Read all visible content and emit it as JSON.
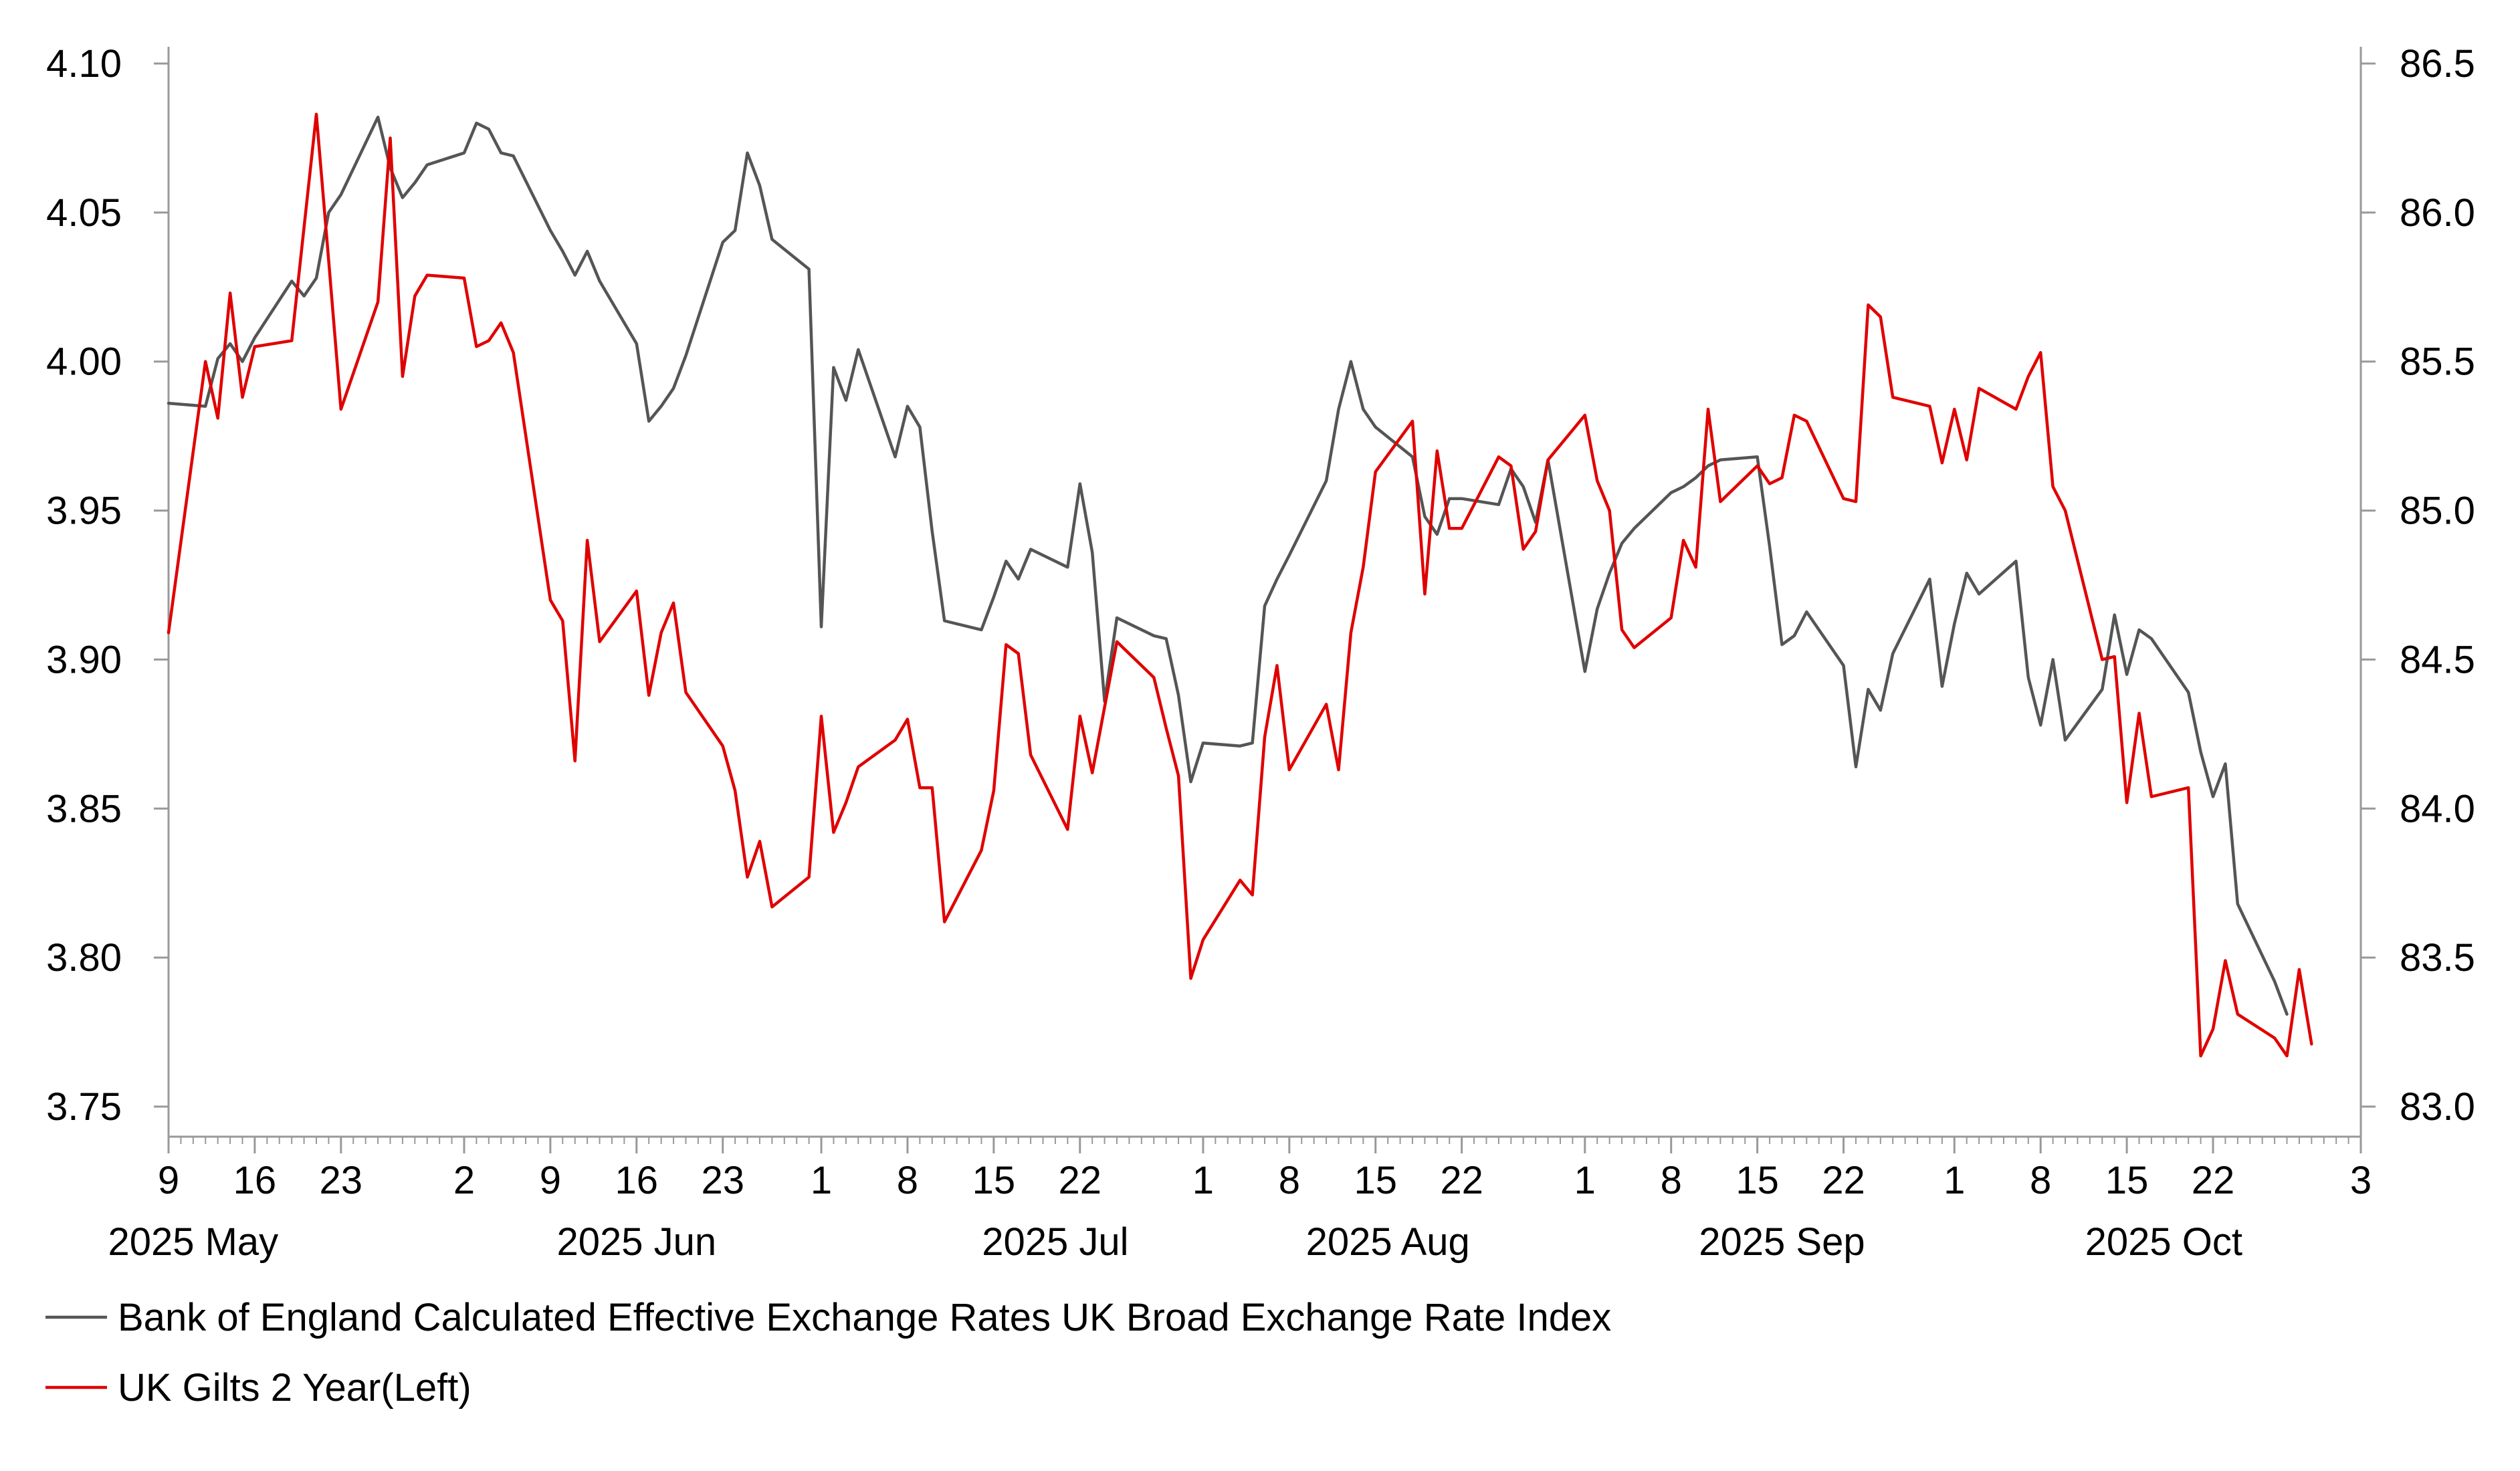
{
  "chart_data": {
    "type": "line",
    "title": "",
    "xlabel": "",
    "ylabel": "",
    "x_tick_days": [
      "9",
      "16",
      "23",
      "2",
      "9",
      "16",
      "23",
      "1",
      "8",
      "15",
      "22",
      "1",
      "8",
      "15",
      "22",
      "1",
      "8",
      "15",
      "22",
      "1",
      "8",
      "15",
      "22",
      "3"
    ],
    "x_tick_dates": [
      "2025-05-09",
      "2025-05-16",
      "2025-05-23",
      "2025-06-02",
      "2025-06-09",
      "2025-06-16",
      "2025-06-23",
      "2025-07-01",
      "2025-07-08",
      "2025-07-15",
      "2025-07-22",
      "2025-08-01",
      "2025-08-08",
      "2025-08-15",
      "2025-08-22",
      "2025-09-01",
      "2025-09-08",
      "2025-09-15",
      "2025-09-22",
      "2025-10-01",
      "2025-10-08",
      "2025-10-15",
      "2025-10-22",
      "2025-11-03"
    ],
    "month_labels": [
      "2025 May",
      "2025 Jun",
      "2025 Jul",
      "2025 Aug",
      "2025 Sep",
      "2025 Oct"
    ],
    "month_label_dates": [
      "2025-05-11",
      "2025-06-16",
      "2025-07-20",
      "2025-08-16",
      "2025-09-17",
      "2025-10-18"
    ],
    "y_left": {
      "ticks": [
        "3.75",
        "3.80",
        "3.85",
        "3.90",
        "3.95",
        "4.00",
        "4.05",
        "4.10"
      ],
      "ylim": [
        3.75,
        4.1
      ]
    },
    "y_right": {
      "ticks": [
        "83.0",
        "83.5",
        "84.0",
        "84.5",
        "85.0",
        "85.5",
        "86.0",
        "86.5"
      ],
      "ylim": [
        83.0,
        86.5
      ]
    },
    "x_range": [
      "2025-05-09",
      "2025-11-03"
    ],
    "grid": false,
    "legend_position": "bottom",
    "series": [
      {
        "name": "Bank of England Calculated Effective Exchange Rates UK Broad Exchange Rate Index",
        "axis": "right",
        "color": "#555555",
        "points": [
          [
            "2025-05-09",
            85.36
          ],
          [
            "2025-05-12",
            85.35
          ],
          [
            "2025-05-13",
            85.51
          ],
          [
            "2025-05-14",
            85.56
          ],
          [
            "2025-05-15",
            85.5
          ],
          [
            "2025-05-16",
            85.58
          ],
          [
            "2025-05-19",
            85.77
          ],
          [
            "2025-05-20",
            85.72
          ],
          [
            "2025-05-21",
            85.78
          ],
          [
            "2025-05-22",
            86.0
          ],
          [
            "2025-05-23",
            86.06
          ],
          [
            "2025-05-26",
            86.32
          ],
          [
            "2025-05-27",
            86.15
          ],
          [
            "2025-05-28",
            86.05
          ],
          [
            "2025-05-29",
            86.1
          ],
          [
            "2025-05-30",
            86.16
          ],
          [
            "2025-06-02",
            86.2
          ],
          [
            "2025-06-03",
            86.3
          ],
          [
            "2025-06-04",
            86.28
          ],
          [
            "2025-06-05",
            86.2
          ],
          [
            "2025-06-06",
            86.19
          ],
          [
            "2025-06-09",
            85.94
          ],
          [
            "2025-06-10",
            85.87
          ],
          [
            "2025-06-11",
            85.79
          ],
          [
            "2025-06-12",
            85.87
          ],
          [
            "2025-06-13",
            85.77
          ],
          [
            "2025-06-16",
            85.56
          ],
          [
            "2025-06-17",
            85.3
          ],
          [
            "2025-06-18",
            85.35
          ],
          [
            "2025-06-19",
            85.41
          ],
          [
            "2025-06-20",
            85.52
          ],
          [
            "2025-06-23",
            85.9
          ],
          [
            "2025-06-24",
            85.94
          ],
          [
            "2025-06-25",
            86.2
          ],
          [
            "2025-06-26",
            86.09
          ],
          [
            "2025-06-27",
            85.91
          ],
          [
            "2025-06-30",
            85.81
          ],
          [
            "2025-07-01",
            84.61
          ],
          [
            "2025-07-02",
            85.48
          ],
          [
            "2025-07-03",
            85.37
          ],
          [
            "2025-07-04",
            85.54
          ],
          [
            "2025-07-07",
            85.18
          ],
          [
            "2025-07-08",
            85.35
          ],
          [
            "2025-07-09",
            85.28
          ],
          [
            "2025-07-10",
            84.93
          ],
          [
            "2025-07-11",
            84.63
          ],
          [
            "2025-07-14",
            84.6
          ],
          [
            "2025-07-15",
            84.71
          ],
          [
            "2025-07-16",
            84.83
          ],
          [
            "2025-07-17",
            84.77
          ],
          [
            "2025-07-18",
            84.87
          ],
          [
            "2025-07-21",
            84.81
          ],
          [
            "2025-07-22",
            85.09
          ],
          [
            "2025-07-23",
            84.86
          ],
          [
            "2025-07-24",
            84.36
          ],
          [
            "2025-07-25",
            84.64
          ],
          [
            "2025-07-28",
            84.58
          ],
          [
            "2025-07-29",
            84.57
          ],
          [
            "2025-07-30",
            84.38
          ],
          [
            "2025-07-31",
            84.09
          ],
          [
            "2025-08-01",
            84.22
          ],
          [
            "2025-08-04",
            84.21
          ],
          [
            "2025-08-05",
            84.22
          ],
          [
            "2025-08-06",
            84.68
          ],
          [
            "2025-08-07",
            84.77
          ],
          [
            "2025-08-08",
            84.85
          ],
          [
            "2025-08-11",
            85.1
          ],
          [
            "2025-08-12",
            85.34
          ],
          [
            "2025-08-13",
            85.5
          ],
          [
            "2025-08-14",
            85.34
          ],
          [
            "2025-08-15",
            85.28
          ],
          [
            "2025-08-18",
            85.18
          ],
          [
            "2025-08-19",
            84.98
          ],
          [
            "2025-08-20",
            84.92
          ],
          [
            "2025-08-21",
            85.04
          ],
          [
            "2025-08-22",
            85.04
          ],
          [
            "2025-08-25",
            85.02
          ],
          [
            "2025-08-26",
            85.14
          ],
          [
            "2025-08-27",
            85.08
          ],
          [
            "2025-08-28",
            84.96
          ],
          [
            "2025-08-29",
            85.17
          ],
          [
            "2025-09-01",
            84.46
          ],
          [
            "2025-09-02",
            84.67
          ],
          [
            "2025-09-03",
            84.79
          ],
          [
            "2025-09-04",
            84.89
          ],
          [
            "2025-09-05",
            84.94
          ],
          [
            "2025-09-08",
            85.06
          ],
          [
            "2025-09-09",
            85.08
          ],
          [
            "2025-09-10",
            85.11
          ],
          [
            "2025-09-11",
            85.15
          ],
          [
            "2025-09-12",
            85.17
          ],
          [
            "2025-09-15",
            85.18
          ],
          [
            "2025-09-16",
            84.88
          ],
          [
            "2025-09-17",
            84.55
          ],
          [
            "2025-09-18",
            84.58
          ],
          [
            "2025-09-19",
            84.66
          ],
          [
            "2025-09-22",
            84.48
          ],
          [
            "2025-09-23",
            84.14
          ],
          [
            "2025-09-24",
            84.4
          ],
          [
            "2025-09-25",
            84.33
          ],
          [
            "2025-09-26",
            84.52
          ],
          [
            "2025-09-29",
            84.77
          ],
          [
            "2025-09-30",
            84.41
          ],
          [
            "2025-10-01",
            84.62
          ],
          [
            "2025-10-02",
            84.79
          ],
          [
            "2025-10-03",
            84.72
          ],
          [
            "2025-10-06",
            84.83
          ],
          [
            "2025-10-07",
            84.44
          ],
          [
            "2025-10-08",
            84.28
          ],
          [
            "2025-10-09",
            84.5
          ],
          [
            "2025-10-10",
            84.23
          ],
          [
            "2025-10-13",
            84.4
          ],
          [
            "2025-10-14",
            84.65
          ],
          [
            "2025-10-15",
            84.45
          ],
          [
            "2025-10-16",
            84.6
          ],
          [
            "2025-10-17",
            84.57
          ],
          [
            "2025-10-20",
            84.39
          ],
          [
            "2025-10-21",
            84.19
          ],
          [
            "2025-10-22",
            84.04
          ],
          [
            "2025-10-23",
            84.15
          ],
          [
            "2025-10-24",
            83.68
          ],
          [
            "2025-10-27",
            83.42
          ],
          [
            "2025-10-28",
            83.31
          ]
        ]
      },
      {
        "name": "UK Gilts 2 Year(Left)",
        "axis": "left",
        "color": "#e00000",
        "points": [
          [
            "2025-05-09",
            3.909
          ],
          [
            "2025-05-12",
            4.0
          ],
          [
            "2025-05-13",
            3.981
          ],
          [
            "2025-05-14",
            4.023
          ],
          [
            "2025-05-15",
            3.988
          ],
          [
            "2025-05-16",
            4.005
          ],
          [
            "2025-05-19",
            4.007
          ],
          [
            "2025-05-20",
            4.045
          ],
          [
            "2025-05-21",
            4.083
          ],
          [
            "2025-05-22",
            4.034
          ],
          [
            "2025-05-23",
            3.984
          ],
          [
            "2025-05-26",
            4.02
          ],
          [
            "2025-05-27",
            4.075
          ],
          [
            "2025-05-28",
            3.995
          ],
          [
            "2025-05-29",
            4.022
          ],
          [
            "2025-05-30",
            4.029
          ],
          [
            "2025-06-02",
            4.028
          ],
          [
            "2025-06-03",
            4.005
          ],
          [
            "2025-06-04",
            4.007
          ],
          [
            "2025-06-05",
            4.013
          ],
          [
            "2025-06-06",
            4.003
          ],
          [
            "2025-06-09",
            3.92
          ],
          [
            "2025-06-10",
            3.913
          ],
          [
            "2025-06-11",
            3.866
          ],
          [
            "2025-06-12",
            3.94
          ],
          [
            "2025-06-13",
            3.906
          ],
          [
            "2025-06-16",
            3.923
          ],
          [
            "2025-06-17",
            3.888
          ],
          [
            "2025-06-18",
            3.909
          ],
          [
            "2025-06-19",
            3.919
          ],
          [
            "2025-06-20",
            3.889
          ],
          [
            "2025-06-23",
            3.871
          ],
          [
            "2025-06-24",
            3.856
          ],
          [
            "2025-06-25",
            3.827
          ],
          [
            "2025-06-26",
            3.839
          ],
          [
            "2025-06-27",
            3.817
          ],
          [
            "2025-06-30",
            3.827
          ],
          [
            "2025-07-01",
            3.881
          ],
          [
            "2025-07-02",
            3.842
          ],
          [
            "2025-07-03",
            3.852
          ],
          [
            "2025-07-04",
            3.864
          ],
          [
            "2025-07-07",
            3.873
          ],
          [
            "2025-07-08",
            3.88
          ],
          [
            "2025-07-09",
            3.857
          ],
          [
            "2025-07-10",
            3.857
          ],
          [
            "2025-07-11",
            3.812
          ],
          [
            "2025-07-14",
            3.836
          ],
          [
            "2025-07-15",
            3.856
          ],
          [
            "2025-07-16",
            3.905
          ],
          [
            "2025-07-17",
            3.902
          ],
          [
            "2025-07-18",
            3.868
          ],
          [
            "2025-07-21",
            3.843
          ],
          [
            "2025-07-22",
            3.881
          ],
          [
            "2025-07-23",
            3.862
          ],
          [
            "2025-07-24",
            3.884
          ],
          [
            "2025-07-25",
            3.906
          ],
          [
            "2025-07-28",
            3.894
          ],
          [
            "2025-07-29",
            3.877
          ],
          [
            "2025-07-30",
            3.861
          ],
          [
            "2025-07-31",
            3.793
          ],
          [
            "2025-08-01",
            3.806
          ],
          [
            "2025-08-04",
            3.826
          ],
          [
            "2025-08-05",
            3.821
          ],
          [
            "2025-08-06",
            3.874
          ],
          [
            "2025-08-07",
            3.898
          ],
          [
            "2025-08-08",
            3.863
          ],
          [
            "2025-08-11",
            3.885
          ],
          [
            "2025-08-12",
            3.863
          ],
          [
            "2025-08-13",
            3.909
          ],
          [
            "2025-08-14",
            3.931
          ],
          [
            "2025-08-15",
            3.963
          ],
          [
            "2025-08-18",
            3.98
          ],
          [
            "2025-08-19",
            3.922
          ],
          [
            "2025-08-20",
            3.97
          ],
          [
            "2025-08-21",
            3.944
          ],
          [
            "2025-08-22",
            3.944
          ],
          [
            "2025-08-25",
            3.968
          ],
          [
            "2025-08-26",
            3.965
          ],
          [
            "2025-08-27",
            3.937
          ],
          [
            "2025-08-28",
            3.943
          ],
          [
            "2025-08-29",
            3.967
          ],
          [
            "2025-09-01",
            3.982
          ],
          [
            "2025-09-02",
            3.96
          ],
          [
            "2025-09-03",
            3.95
          ],
          [
            "2025-09-04",
            3.91
          ],
          [
            "2025-09-05",
            3.904
          ],
          [
            "2025-09-08",
            3.914
          ],
          [
            "2025-09-09",
            3.94
          ],
          [
            "2025-09-10",
            3.931
          ],
          [
            "2025-09-11",
            3.984
          ],
          [
            "2025-09-12",
            3.953
          ],
          [
            "2025-09-15",
            3.965
          ],
          [
            "2025-09-16",
            3.959
          ],
          [
            "2025-09-17",
            3.961
          ],
          [
            "2025-09-18",
            3.982
          ],
          [
            "2025-09-19",
            3.98
          ],
          [
            "2025-09-22",
            3.954
          ],
          [
            "2025-09-23",
            3.953
          ],
          [
            "2025-09-24",
            4.019
          ],
          [
            "2025-09-25",
            4.015
          ],
          [
            "2025-09-26",
            3.988
          ],
          [
            "2025-09-29",
            3.985
          ],
          [
            "2025-09-30",
            3.966
          ],
          [
            "2025-10-01",
            3.984
          ],
          [
            "2025-10-02",
            3.967
          ],
          [
            "2025-10-03",
            3.991
          ],
          [
            "2025-10-06",
            3.984
          ],
          [
            "2025-10-07",
            3.995
          ],
          [
            "2025-10-08",
            4.003
          ],
          [
            "2025-10-09",
            3.958
          ],
          [
            "2025-10-10",
            3.95
          ],
          [
            "2025-10-13",
            3.9
          ],
          [
            "2025-10-14",
            3.901
          ],
          [
            "2025-10-15",
            3.852
          ],
          [
            "2025-10-16",
            3.882
          ],
          [
            "2025-10-17",
            3.854
          ],
          [
            "2025-10-20",
            3.857
          ],
          [
            "2025-10-21",
            3.767
          ],
          [
            "2025-10-22",
            3.776
          ],
          [
            "2025-10-23",
            3.799
          ],
          [
            "2025-10-24",
            3.781
          ],
          [
            "2025-10-27",
            3.773
          ],
          [
            "2025-10-28",
            3.767
          ],
          [
            "2025-10-29",
            3.796
          ],
          [
            "2025-10-30",
            3.771
          ]
        ]
      }
    ]
  }
}
